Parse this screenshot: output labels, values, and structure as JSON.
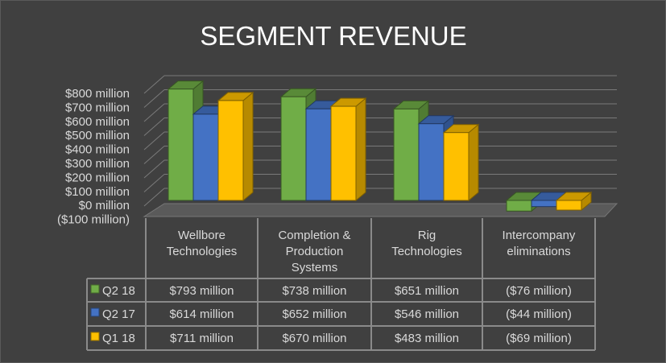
{
  "chart_data": {
    "type": "bar",
    "title": "SEGMENT REVENUE",
    "categories": [
      [
        "Wellbore",
        "Technologies"
      ],
      [
        "Completion &",
        "Production",
        "Systems"
      ],
      [
        "Rig",
        "Technologies"
      ],
      [
        "Intercompany",
        "eliminations"
      ]
    ],
    "series": [
      {
        "name": "Q2 18",
        "color": "#70ad47",
        "values": [
          793,
          738,
          651,
          -76
        ],
        "labels": [
          "$793 million",
          "$738 million",
          "$651 million",
          "($76 million)"
        ]
      },
      {
        "name": "Q2 17",
        "color": "#4472c4",
        "values": [
          614,
          652,
          546,
          -44
        ],
        "labels": [
          "$614 million",
          "$652 million",
          "$546 million",
          "($44 million)"
        ]
      },
      {
        "name": "Q1 18",
        "color": "#ffc000",
        "values": [
          711,
          670,
          483,
          -69
        ],
        "labels": [
          "$711 million",
          "$670 million",
          "$483 million",
          "($69 million)"
        ]
      }
    ],
    "yticks": [
      800,
      700,
      600,
      500,
      400,
      300,
      200,
      100,
      0,
      -100
    ],
    "ytick_labels": [
      "$800 million",
      "$700 million",
      "$600 million",
      "$500 million",
      "$400 million",
      "$300 million",
      "$200 million",
      "$100 million",
      "$0 million",
      "($100 million)"
    ],
    "ylim": [
      -100,
      800
    ],
    "grid": true,
    "legend": "data-table"
  }
}
